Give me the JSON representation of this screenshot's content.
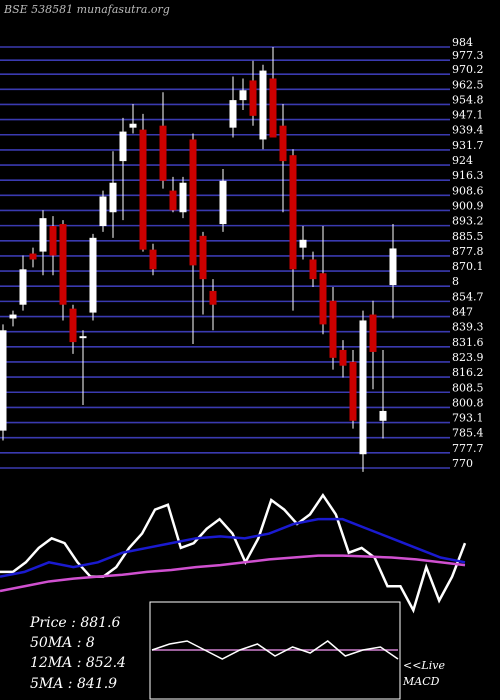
{
  "chart_data": {
    "type": "candlestick",
    "title": "BSE 538581 munafasutra.org",
    "open": [
      789,
      846,
      853,
      879,
      880,
      893,
      894,
      851,
      836,
      849,
      893,
      900,
      926,
      943,
      942,
      881,
      944,
      911,
      900,
      937,
      888,
      860,
      894,
      943,
      957,
      967,
      937,
      968,
      944,
      929,
      882,
      876,
      869,
      855,
      830,
      824,
      777,
      848,
      794,
      863
    ],
    "high": [
      843,
      850,
      878,
      882,
      901,
      898,
      896,
      853,
      840,
      889,
      911,
      931,
      948,
      955,
      950,
      884,
      961,
      918,
      918,
      940,
      890,
      866,
      922,
      969,
      968,
      977,
      975,
      984,
      955,
      932,
      893,
      880,
      893,
      862,
      835,
      830,
      850,
      855,
      830,
      894
    ],
    "low": [
      784,
      842,
      850,
      872,
      868,
      868,
      845,
      828,
      802,
      845,
      890,
      887,
      896,
      940,
      880,
      868,
      912,
      900,
      897,
      833,
      848,
      840,
      890,
      938,
      952,
      944,
      932,
      938,
      900,
      850,
      876,
      862,
      838,
      820,
      816,
      790,
      768,
      810,
      785,
      846
    ],
    "close": [
      840,
      848,
      871,
      876,
      897,
      878,
      853,
      834,
      837,
      887,
      908,
      915,
      941,
      945,
      881,
      871,
      916,
      901,
      915,
      873,
      866,
      853,
      916,
      957,
      962,
      949,
      972,
      938,
      926,
      871,
      886,
      866,
      843,
      826,
      822,
      794,
      845,
      829,
      799,
      881.6
    ],
    "up_color": "#ffffff",
    "down_color": "#cc0000",
    "grid_color": "#3a3ab0",
    "ylim": [
      770,
      984
    ],
    "yticks": [
      984,
      977.3,
      970.2,
      962.5,
      954.8,
      947.1,
      939.4,
      931.7,
      924,
      916.3,
      908.6,
      900.9,
      893.2,
      885.5,
      877.8,
      870.1,
      {
        "value": 862.4,
        "label": "8"
      },
      854.7,
      847,
      839.3,
      831.6,
      823.9,
      816.2,
      808.5,
      800.8,
      793.1,
      785.4,
      777.7,
      770
    ],
    "grid": true,
    "indicator_ylim": [
      -10,
      110
    ],
    "indicator_series": [
      {
        "color": "#ffffff",
        "values": [
          35,
          35,
          45,
          60,
          70,
          65,
          45,
          30,
          30,
          40,
          60,
          75,
          100,
          105,
          60,
          65,
          80,
          90,
          75,
          45,
          70,
          110,
          100,
          85,
          95,
          115,
          95,
          55,
          60,
          50,
          20,
          20,
          -5,
          40,
          5,
          30,
          65
        ]
      },
      {
        "color": "#1a1ad0",
        "values": [
          30,
          35,
          45,
          40,
          45,
          55,
          60,
          65,
          70,
          72,
          70,
          75,
          85,
          90,
          90,
          80,
          70,
          60,
          50,
          45
        ]
      },
      {
        "color": "#d050d0",
        "values": [
          15,
          20,
          25,
          28,
          30,
          32,
          35,
          37,
          40,
          42,
          45,
          48,
          50,
          52,
          52,
          51,
          50,
          48,
          45,
          42
        ]
      }
    ],
    "macd_ylim": [
      -10,
      10
    ],
    "macd_series": [
      {
        "color": "#d080d0",
        "values": [
          0,
          0
        ]
      },
      {
        "color": "#ffffff",
        "values": [
          0,
          2,
          3,
          0,
          -3,
          0,
          2,
          -2,
          1,
          -1,
          3,
          -2,
          0,
          1,
          -3
        ]
      }
    ],
    "stats": [
      "Price  : 881.6",
      "50MA : 8",
      "12MA : 852.4",
      "5MA : 841.9"
    ],
    "live_label": "<<Live",
    "macd_label": "MACD"
  }
}
